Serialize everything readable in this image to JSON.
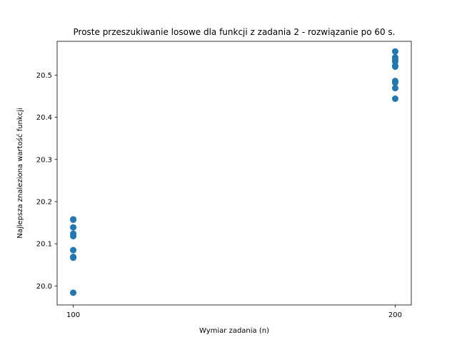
{
  "chart_data": {
    "type": "scatter",
    "title": "Proste przeszukiwanie losowe dla funkcji z zadania 2 - rozwiązanie po 60 s.",
    "xlabel": "Wymiar zadania (n)",
    "ylabel": "Najlepsza znaleziona wartość funkcji",
    "xlim": [
      95,
      205
    ],
    "ylim": [
      19.955,
      20.58
    ],
    "xticks": [
      100,
      200
    ],
    "yticks": [
      20.0,
      20.1,
      20.2,
      20.3,
      20.4,
      20.5
    ],
    "ytick_labels": [
      "20.0",
      "20.1",
      "20.2",
      "20.3",
      "20.4",
      "20.5"
    ],
    "grid": false,
    "marker_color": "#1f77b4",
    "points": [
      {
        "x": 100,
        "y": 20.158
      },
      {
        "x": 100,
        "y": 20.157
      },
      {
        "x": 100,
        "y": 20.139
      },
      {
        "x": 100,
        "y": 20.124
      },
      {
        "x": 100,
        "y": 20.118
      },
      {
        "x": 100,
        "y": 20.085
      },
      {
        "x": 100,
        "y": 20.069
      },
      {
        "x": 100,
        "y": 20.067
      },
      {
        "x": 100,
        "y": 19.984
      },
      {
        "x": 200,
        "y": 20.556
      },
      {
        "x": 200,
        "y": 20.542
      },
      {
        "x": 200,
        "y": 20.536
      },
      {
        "x": 200,
        "y": 20.532
      },
      {
        "x": 200,
        "y": 20.522
      },
      {
        "x": 200,
        "y": 20.52
      },
      {
        "x": 200,
        "y": 20.486
      },
      {
        "x": 200,
        "y": 20.482
      },
      {
        "x": 200,
        "y": 20.469
      },
      {
        "x": 200,
        "y": 20.444
      }
    ]
  }
}
